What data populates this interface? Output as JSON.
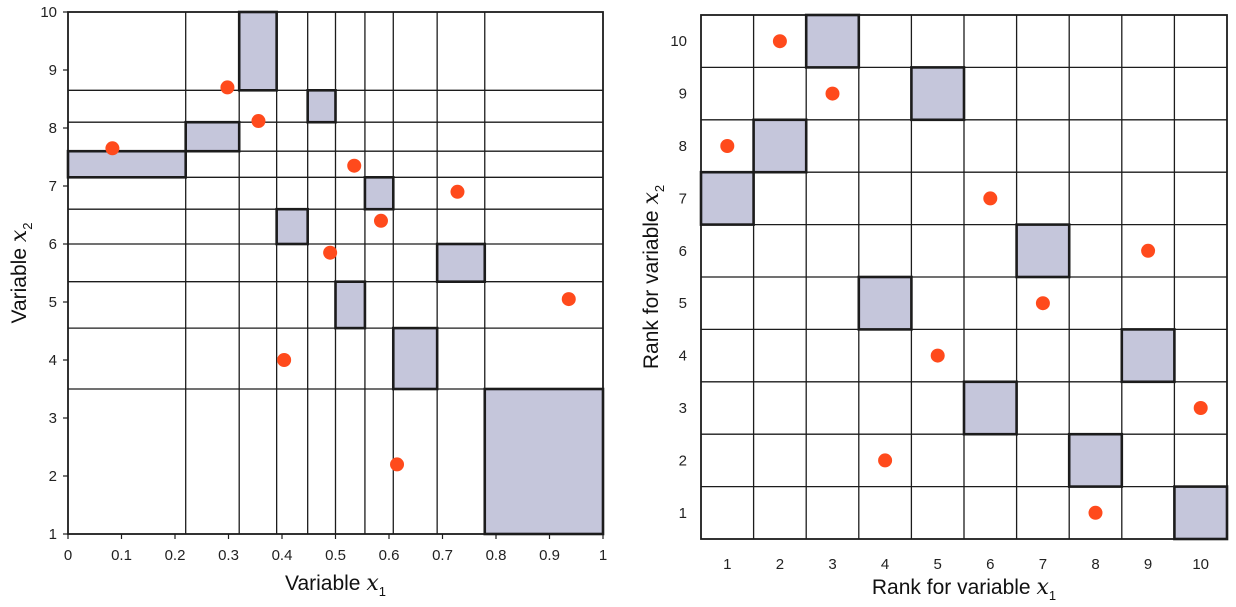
{
  "chart_data": [
    {
      "type": "scatter",
      "title": "",
      "xlabel": "Variable x1",
      "ylabel": "Variable x2",
      "xlabel_text": "Variable ",
      "ylabel_text": "Variable ",
      "axis_var": "x",
      "xlabel_sub": "1",
      "ylabel_sub": "2",
      "xlim": [
        0,
        1
      ],
      "ylim": [
        1,
        10
      ],
      "xticks": [
        "0",
        "0.1",
        "0.2",
        "0.3",
        "0.4",
        "0.5",
        "0.6",
        "0.7",
        "0.8",
        "0.9",
        "1"
      ],
      "yticks": [
        "1",
        "2",
        "3",
        "4",
        "5",
        "6",
        "7",
        "8",
        "9",
        "10"
      ],
      "grid": "non-uniform strata lines",
      "x_strata_bounds": [
        0.22,
        0.32,
        0.39,
        0.448,
        0.5,
        0.555,
        0.608,
        0.69,
        0.779
      ],
      "y_strata_bounds": [
        3.5,
        4.55,
        5.35,
        6.0,
        6.6,
        7.15,
        7.6,
        8.1,
        8.65
      ],
      "points": [
        {
          "x": 0.083,
          "y": 7.65
        },
        {
          "x": 0.298,
          "y": 8.7
        },
        {
          "x": 0.356,
          "y": 8.12
        },
        {
          "x": 0.404,
          "y": 4.0
        },
        {
          "x": 0.49,
          "y": 5.85
        },
        {
          "x": 0.535,
          "y": 7.35
        },
        {
          "x": 0.585,
          "y": 6.4
        },
        {
          "x": 0.615,
          "y": 2.2
        },
        {
          "x": 0.728,
          "y": 6.9
        },
        {
          "x": 0.936,
          "y": 5.05
        }
      ],
      "shaded_cells": [
        {
          "x": [
            0.0,
            0.22
          ],
          "y": [
            7.15,
            7.6
          ]
        },
        {
          "x": [
            0.22,
            0.32
          ],
          "y": [
            7.6,
            8.1
          ]
        },
        {
          "x": [
            0.32,
            0.39
          ],
          "y": [
            8.65,
            10
          ]
        },
        {
          "x": [
            0.39,
            0.448
          ],
          "y": [
            6.0,
            6.6
          ]
        },
        {
          "x": [
            0.448,
            0.5
          ],
          "y": [
            8.1,
            8.65
          ]
        },
        {
          "x": [
            0.5,
            0.555
          ],
          "y": [
            4.55,
            5.35
          ]
        },
        {
          "x": [
            0.555,
            0.608
          ],
          "y": [
            6.6,
            7.15
          ]
        },
        {
          "x": [
            0.608,
            0.69
          ],
          "y": [
            3.5,
            4.55
          ]
        },
        {
          "x": [
            0.69,
            0.779
          ],
          "y": [
            5.35,
            6.0
          ]
        },
        {
          "x": [
            0.779,
            1.0
          ],
          "y": [
            1,
            3.5
          ]
        }
      ]
    },
    {
      "type": "scatter",
      "title": "",
      "xlabel": "Rank for variable x1",
      "ylabel": "Rank for variable x2",
      "xlabel_text": "Rank for variable ",
      "ylabel_text": "Rank for variable ",
      "axis_var": "x",
      "xlabel_sub": "1",
      "ylabel_sub": "2",
      "xlim": [
        0.5,
        10.5
      ],
      "ylim": [
        0.5,
        10.5
      ],
      "xticks": [
        "1",
        "2",
        "3",
        "4",
        "5",
        "6",
        "7",
        "8",
        "9",
        "10"
      ],
      "yticks": [
        "1",
        "2",
        "3",
        "4",
        "5",
        "6",
        "7",
        "8",
        "9",
        "10"
      ],
      "grid": "uniform 10x10",
      "points": [
        {
          "x": 1,
          "y": 8
        },
        {
          "x": 2,
          "y": 10
        },
        {
          "x": 3,
          "y": 9
        },
        {
          "x": 4,
          "y": 2
        },
        {
          "x": 5,
          "y": 4
        },
        {
          "x": 6,
          "y": 7
        },
        {
          "x": 7,
          "y": 5
        },
        {
          "x": 8,
          "y": 1
        },
        {
          "x": 9,
          "y": 6
        },
        {
          "x": 10,
          "y": 3
        }
      ],
      "shaded_cells": [
        {
          "x": 1,
          "y": 7
        },
        {
          "x": 2,
          "y": 8
        },
        {
          "x": 3,
          "y": 10
        },
        {
          "x": 4,
          "y": 5
        },
        {
          "x": 5,
          "y": 9
        },
        {
          "x": 6,
          "y": 3
        },
        {
          "x": 7,
          "y": 6
        },
        {
          "x": 8,
          "y": 2
        },
        {
          "x": 9,
          "y": 4
        },
        {
          "x": 10,
          "y": 1
        }
      ]
    }
  ],
  "colors": {
    "point": "#ff4a1c",
    "shade": "#c5c6db",
    "line": "#1c1c1c",
    "background": "#ffffff"
  }
}
